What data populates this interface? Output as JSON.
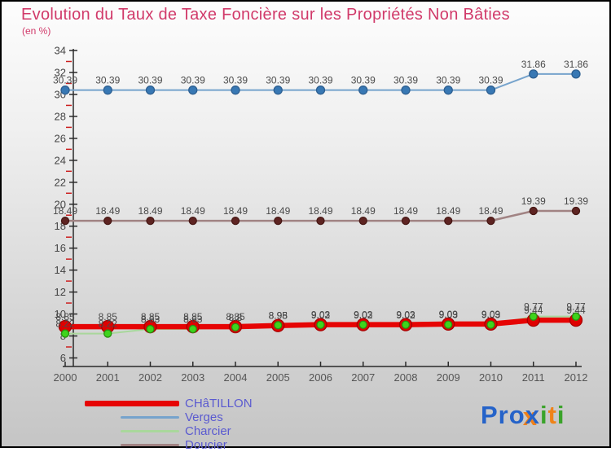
{
  "title": "Evolution du Taux de Taxe Foncière sur les Propriétés Non Bâties",
  "subtitle": "(en %)",
  "colors": {
    "title": "#d13a6a",
    "legend_text": "#5a5ad0",
    "axis": "#2a2a2a",
    "tick_minor": "#cc2020",
    "value_label_text": "#4a4a4a",
    "year_label_text": "#555555",
    "ytick_label_text": "#444444"
  },
  "legend": {
    "items": [
      {
        "label": "CHâTILLON",
        "color": "#e60404",
        "line_height": 7,
        "line_width": 116
      },
      {
        "label": "Verges",
        "color": "#76a3cc",
        "line_height": 3,
        "line_width": 72
      },
      {
        "label": "Charcier",
        "color": "#a9d79c",
        "line_height": 3,
        "line_width": 72
      },
      {
        "label": "Doucier",
        "color": "#a18383",
        "line_height": 3,
        "line_width": 72
      }
    ]
  },
  "logo": {
    "segments": [
      {
        "text": "Pro",
        "color": "#2563c9"
      },
      {
        "text": "x",
        "color": "#2563c9",
        "shadow": "#f08018"
      },
      {
        "text": "i",
        "color": "#3aa32a"
      },
      {
        "text": "t",
        "color": "#ef8318"
      },
      {
        "text": "i",
        "color": "#3aa32a"
      }
    ]
  },
  "chart_data": {
    "type": "line",
    "x": [
      "2000",
      "2001",
      "2002",
      "2003",
      "2004",
      "2005",
      "2006",
      "2007",
      "2008",
      "2009",
      "2010",
      "2011",
      "2012"
    ],
    "ylim": [
      6,
      34
    ],
    "ytick_major_step": 2,
    "grid": false,
    "legend_position": "bottom-left",
    "series": [
      {
        "name": "CHâTILLON",
        "color": "#e60404",
        "marker_color": "#e00000",
        "marker_stroke": "#a80000",
        "line_width": 6.5,
        "marker_r": 7.5,
        "values": [
          8.85,
          8.85,
          8.85,
          8.85,
          8.85,
          8.95,
          9.03,
          9.03,
          9.03,
          9.09,
          9.09,
          9.44,
          9.44
        ],
        "labels": [
          "8.85",
          "8.85",
          "8.85",
          "8.85",
          "8.85",
          "8.95",
          "9.03",
          "9.03",
          "9.03",
          "9.09",
          "9.09",
          "9.44",
          "9.44"
        ]
      },
      {
        "name": "Verges",
        "color": "#76a3cc",
        "marker_color": "#3878b4",
        "marker_stroke": "#2d5f91",
        "line_width": 2,
        "marker_r": 5,
        "values": [
          30.39,
          30.39,
          30.39,
          30.39,
          30.39,
          30.39,
          30.39,
          30.39,
          30.39,
          30.39,
          30.39,
          31.86,
          31.86
        ],
        "labels": [
          "30.39",
          "30.39",
          "30.39",
          "30.39",
          "30.39",
          "30.39",
          "30.39",
          "30.39",
          "30.39",
          "30.39",
          "30.39",
          "31.86",
          "31.86"
        ]
      },
      {
        "name": "Charcier",
        "color": "#a9d79c",
        "marker_color": "#3ed41c",
        "marker_stroke": "#2a8f12",
        "line_width": 2,
        "marker_r": 4.5,
        "values": [
          8.22,
          8.22,
          8.63,
          8.63,
          8.8,
          8.98,
          9.02,
          9.02,
          9.02,
          9.03,
          9.03,
          9.77,
          9.77
        ],
        "labels": [
          "8.22",
          "8.22",
          "8.63",
          "8.63",
          "8.8",
          "8.98",
          "9.02",
          "9.02",
          "9.02",
          "9.03",
          "9.03",
          "9.77",
          "9.77"
        ]
      },
      {
        "name": "Doucier",
        "color": "#a18383",
        "marker_color": "#5e2422",
        "marker_stroke": "#461714",
        "line_width": 2.5,
        "marker_r": 4.5,
        "values": [
          18.49,
          18.49,
          18.49,
          18.49,
          18.49,
          18.49,
          18.49,
          18.49,
          18.49,
          18.49,
          18.49,
          19.39,
          19.39
        ],
        "labels": [
          "18.49",
          "18.49",
          "18.49",
          "18.49",
          "18.49",
          "18.49",
          "18.49",
          "18.49",
          "18.49",
          "18.49",
          "18.49",
          "19.39",
          "19.39"
        ]
      }
    ]
  }
}
